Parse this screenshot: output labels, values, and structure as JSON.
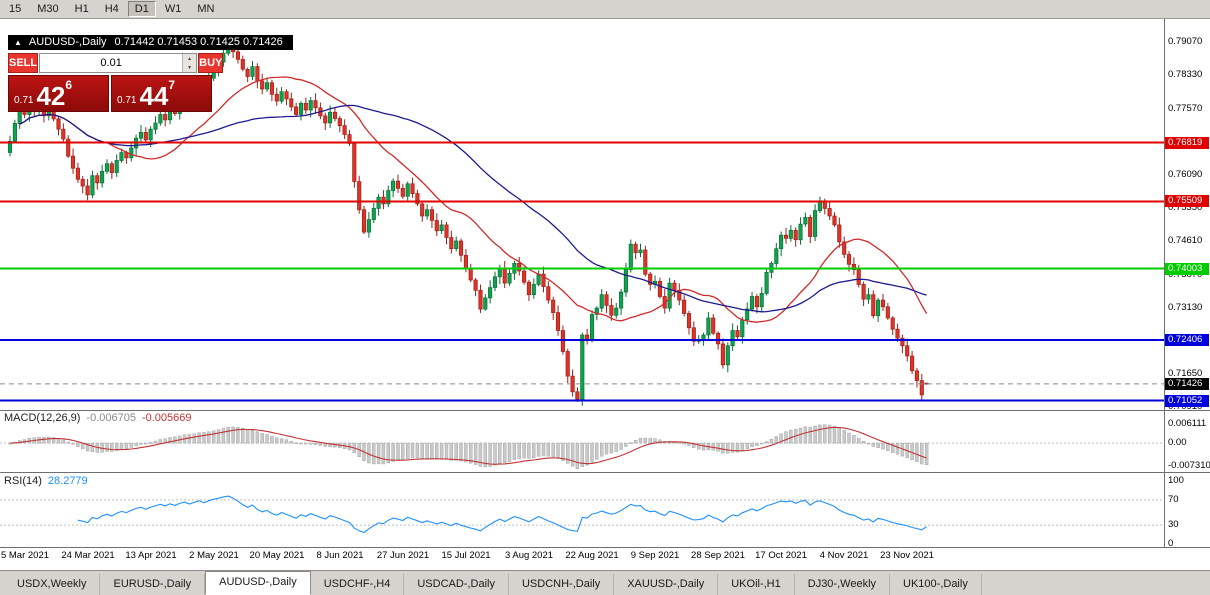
{
  "toolbar": {
    "timeframes": [
      "15",
      "M30",
      "H1",
      "H4",
      "D1",
      "W1",
      "MN"
    ],
    "active": "D1"
  },
  "chart": {
    "title": "AUDUSD-,Daily",
    "ohlc": "0.71442 0.71453 0.71425 0.71426",
    "toggle_icon": "▲"
  },
  "trade": {
    "sell_label": "SELL",
    "buy_label": "BUY",
    "lot": "0.01",
    "sell": {
      "prefix": "0.71",
      "big": "42",
      "sup": "6"
    },
    "buy": {
      "prefix": "0.71",
      "big": "44",
      "sup": "7"
    }
  },
  "indicators": {
    "macd": {
      "name": "MACD(12,26,9)",
      "main_value": "-0.006705",
      "signal_value": "-0.005669",
      "axis_labels": [
        "0.006111",
        "0.00",
        "-0.007310"
      ],
      "axis_values": [
        0.006111,
        0,
        -0.00731
      ],
      "params": [
        12,
        26,
        9
      ]
    },
    "rsi": {
      "name": "RSI(14)",
      "value": "28.2779",
      "axis_labels": [
        "100",
        "70",
        "30",
        "0"
      ],
      "axis_values": [
        100,
        70,
        30,
        0
      ],
      "levels": [
        70,
        30
      ],
      "period": 14
    }
  },
  "chart_data": {
    "type": "candlestick",
    "symbol": "AUDUSD-",
    "timeframe": "Daily",
    "ohlc_current": {
      "open": 0.71442,
      "high": 0.71453,
      "low": 0.71425,
      "close": 0.71426
    },
    "first_open": 0.766,
    "closes": [
      0.7685,
      0.7725,
      0.776,
      0.7745,
      0.7772,
      0.7752,
      0.7766,
      0.7742,
      0.7758,
      0.7735,
      0.7712,
      0.769,
      0.7652,
      0.7625,
      0.76,
      0.7585,
      0.7565,
      0.7608,
      0.7592,
      0.7618,
      0.7635,
      0.7615,
      0.7642,
      0.766,
      0.7648,
      0.767,
      0.7692,
      0.7705,
      0.7688,
      0.7712,
      0.7726,
      0.7745,
      0.7733,
      0.7758,
      0.7747,
      0.777,
      0.7786,
      0.7774,
      0.7792,
      0.7812,
      0.78,
      0.7826,
      0.7845,
      0.7862,
      0.7882,
      0.7896,
      0.7885,
      0.7868,
      0.7846,
      0.783,
      0.7852,
      0.782,
      0.7802,
      0.7816,
      0.779,
      0.7775,
      0.7796,
      0.778,
      0.7762,
      0.7745,
      0.777,
      0.7755,
      0.7776,
      0.776,
      0.7742,
      0.7726,
      0.775,
      0.7736,
      0.772,
      0.77,
      0.768,
      0.7595,
      0.7532,
      0.7482,
      0.751,
      0.7535,
      0.756,
      0.7545,
      0.7575,
      0.7596,
      0.758,
      0.7562,
      0.759,
      0.7568,
      0.7545,
      0.7518,
      0.7532,
      0.7508,
      0.7485,
      0.7498,
      0.747,
      0.7445,
      0.7462,
      0.743,
      0.7402,
      0.7375,
      0.7352,
      0.731,
      0.7335,
      0.7358,
      0.7382,
      0.7402,
      0.7368,
      0.739,
      0.7412,
      0.7395,
      0.737,
      0.7342,
      0.7365,
      0.7388,
      0.736,
      0.733,
      0.7302,
      0.7262,
      0.7215,
      0.716,
      0.7125,
      0.7108,
      0.7252,
      0.724,
      0.7298,
      0.7312,
      0.7342,
      0.7318,
      0.7296,
      0.7312,
      0.7348,
      0.7398,
      0.7455,
      0.7436,
      0.7442,
      0.7388,
      0.7365,
      0.7372,
      0.7338,
      0.7312,
      0.7368,
      0.7352,
      0.733,
      0.73,
      0.7268,
      0.7238,
      0.7242,
      0.7252,
      0.729,
      0.7256,
      0.7232,
      0.7185,
      0.7228,
      0.7262,
      0.7248,
      0.7286,
      0.731,
      0.7338,
      0.7315,
      0.7345,
      0.7392,
      0.7412,
      0.7445,
      0.7475,
      0.7468,
      0.7486,
      0.7465,
      0.75,
      0.7515,
      0.7472,
      0.753,
      0.7552,
      0.7535,
      0.7518,
      0.7498,
      0.746,
      0.7432,
      0.741,
      0.7398,
      0.7365,
      0.7332,
      0.7342,
      0.7295,
      0.733,
      0.7315,
      0.729,
      0.7265,
      0.7245,
      0.7228,
      0.7205,
      0.7172,
      0.715,
      0.7118,
      0.7143
    ],
    "y_tick_labels": [
      "0.79070",
      "0.78330",
      "0.77570",
      "0.76090",
      "0.75350",
      "0.74610",
      "0.73870",
      "0.73130",
      "0.71650",
      "0.70910"
    ],
    "x_tick_labels": [
      "5 Mar 2021",
      "24 Mar 2021",
      "13 Apr 2021",
      "2 May 2021",
      "20 May 2021",
      "8 Jun 2021",
      "27 Jun 2021",
      "15 Jul 2021",
      "3 Aug 2021",
      "22 Aug 2021",
      "9 Sep 2021",
      "28 Sep 2021",
      "17 Oct 2021",
      "4 Nov 2021",
      "23 Nov 2021"
    ],
    "h_lines": [
      {
        "price": 0.76819,
        "label": "0.76819",
        "color": "#e00000"
      },
      {
        "price": 0.75509,
        "label": "0.75509",
        "color": "#e00000"
      },
      {
        "price": 0.74003,
        "label": "0.74003",
        "color": "#00cc00"
      },
      {
        "price": 0.72406,
        "label": "0.72406",
        "color": "#0000dd"
      },
      {
        "price": 0.71052,
        "label": "0.71052",
        "color": "#0000dd"
      }
    ],
    "current_price": {
      "price": 0.71426,
      "label": "0.71426",
      "color": "#000000"
    },
    "moving_averages": [
      {
        "period": 20,
        "color": "#d02a2a"
      },
      {
        "period": 50,
        "color": "#1c1c8f"
      }
    ]
  },
  "tabs": {
    "items": [
      "USDX,Weekly",
      "EURUSD-,Daily",
      "AUDUSD-,Daily",
      "USDCHF-,H4",
      "USDCAD-,Daily",
      "USDCNH-,Daily",
      "XAUUSD-,Daily",
      "UKOil-,H1",
      "DJ30-,Weekly",
      "UK100-,Daily"
    ],
    "active": "AUDUSD-,Daily"
  }
}
